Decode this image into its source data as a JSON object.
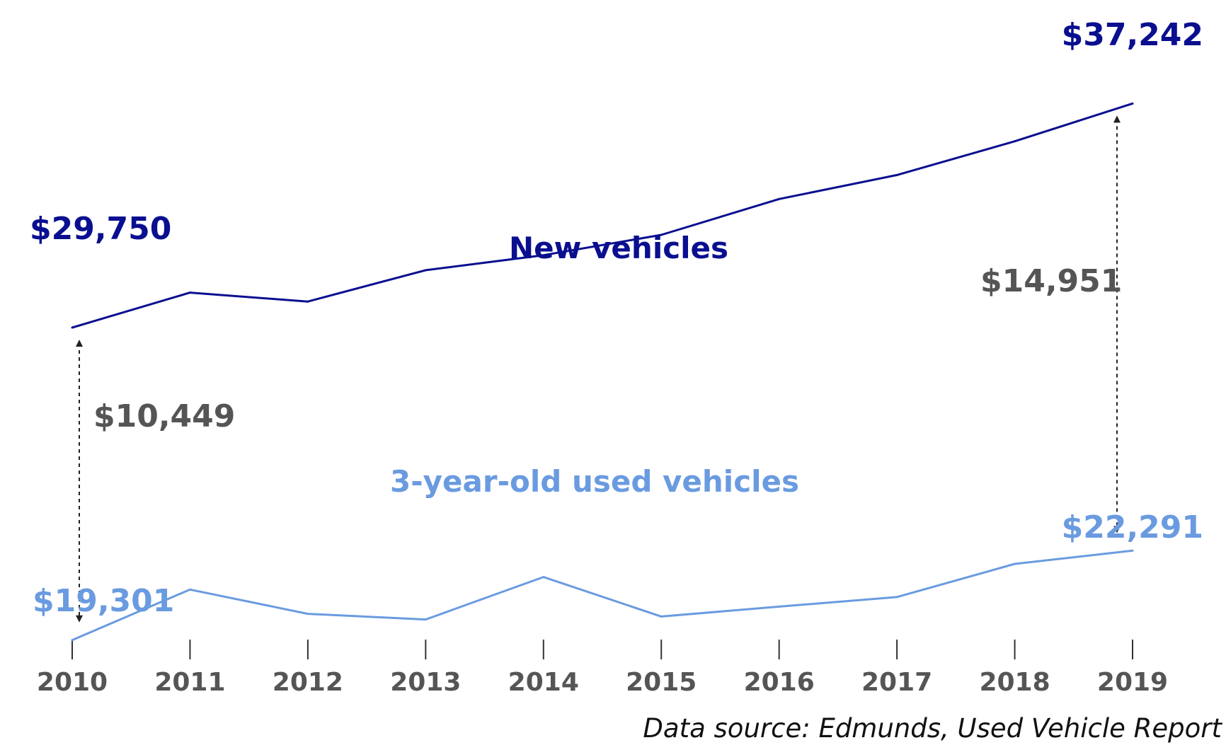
{
  "chart_data": {
    "type": "line",
    "categories": [
      "2010",
      "2011",
      "2012",
      "2013",
      "2014",
      "2015",
      "2016",
      "2017",
      "2018",
      "2019"
    ],
    "ylim": [
      17000,
      39000
    ],
    "grid": false,
    "series": [
      {
        "name": "New vehicles",
        "color": "#0a0f8f",
        "values": [
          29750,
          30920,
          30620,
          31670,
          32170,
          32850,
          34050,
          34850,
          35980,
          37242
        ]
      },
      {
        "name": "3-year-old used vehicles",
        "color": "#6a9be0",
        "values": [
          19301,
          20990,
          20180,
          19990,
          21410,
          20090,
          20420,
          20740,
          21850,
          22291
        ]
      }
    ],
    "annotations": {
      "new_start": "$29,750",
      "new_end": "$37,242",
      "used_start": "$19,301",
      "used_end": "$22,291",
      "gap_2010": "$10,449",
      "gap_2019": "$14,951"
    },
    "gap_color": "#555555",
    "source": "Data source: Edmunds, Used Vehicle Report"
  }
}
